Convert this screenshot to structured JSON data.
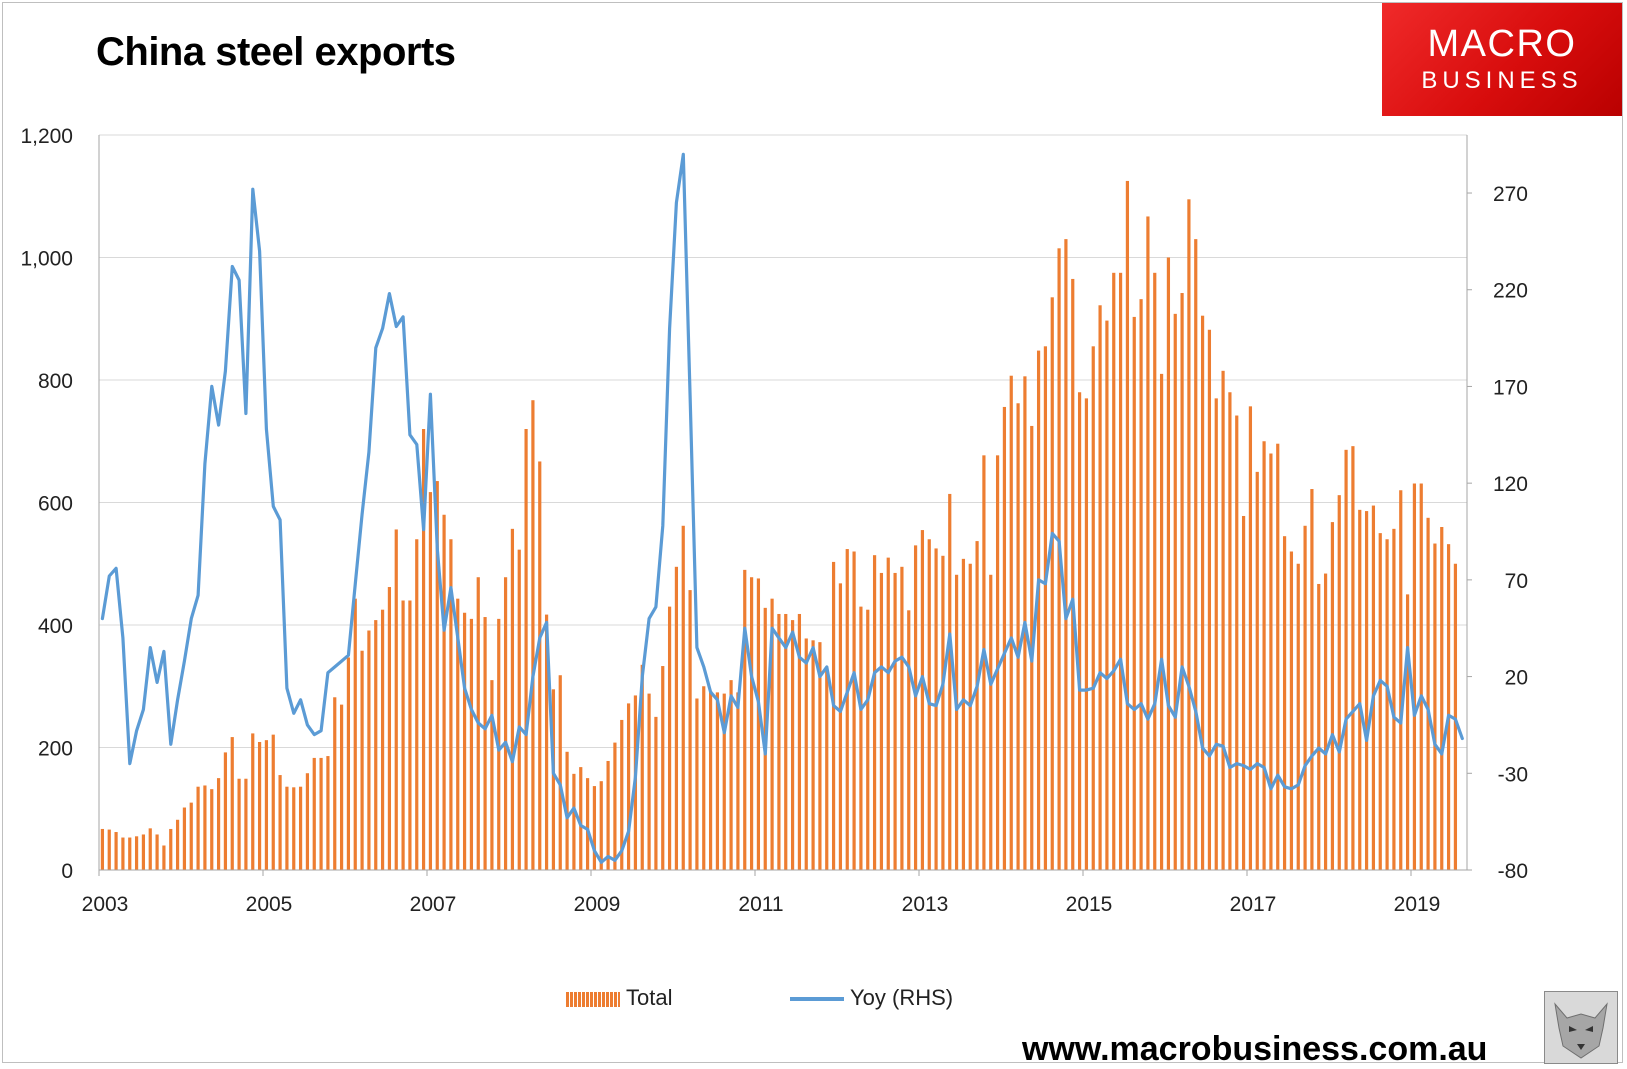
{
  "header": {
    "title": "China steel exports"
  },
  "logo": {
    "line1": "MACRO",
    "line2": "BUSINESS"
  },
  "footer": {
    "website": "www.macrobusiness.com.au"
  },
  "colors": {
    "bar": "#ed7d31",
    "line": "#5b9bd5",
    "grid": "#d9d9d9",
    "logo": "#e01b1b"
  },
  "chart_data": {
    "type": "bar+line",
    "title": "China steel exports",
    "x_ticks": [
      "2003",
      "2005",
      "2007",
      "2009",
      "2011",
      "2013",
      "2015",
      "2017",
      "2019"
    ],
    "y_left": {
      "min": 0,
      "max": 1200,
      "ticks": [
        "0",
        "200",
        "400",
        "600",
        "800",
        "1,000",
        "1,200"
      ]
    },
    "y_right": {
      "min": -80,
      "max": 300,
      "ticks": [
        "-80",
        "-30",
        "20",
        "70",
        "120",
        "170",
        "220",
        "270"
      ]
    },
    "legend": {
      "bar": "Total",
      "line": "Yoy (RHS)"
    },
    "series": [
      {
        "name": "Total",
        "axis": "left",
        "type": "bar",
        "values": [
          67,
          66,
          62,
          53,
          53,
          55,
          58,
          68,
          58,
          40,
          67,
          82,
          102,
          110,
          136,
          138,
          132,
          150,
          192,
          217,
          149,
          149,
          223,
          209,
          212,
          221,
          155,
          136,
          135,
          136,
          158,
          183,
          183,
          186,
          282,
          270,
          347,
          443,
          358,
          391,
          408,
          425,
          462,
          556,
          440,
          440,
          540,
          720,
          617,
          635,
          580,
          540,
          443,
          420,
          410,
          478,
          413,
          310,
          410,
          478,
          557,
          523,
          720,
          767,
          667,
          417,
          295,
          318,
          193,
          157,
          168,
          150,
          137,
          145,
          178,
          208,
          245,
          272,
          285,
          335,
          288,
          250,
          333,
          430,
          495,
          562,
          457,
          280,
          300,
          292,
          290,
          288,
          310,
          290,
          490,
          478,
          476,
          428,
          443,
          418,
          418,
          408,
          418,
          378,
          375,
          372,
          332,
          503,
          468,
          524,
          520,
          430,
          425,
          514,
          485,
          510,
          485,
          495,
          424,
          530,
          555,
          540,
          525,
          513,
          614,
          482,
          508,
          500,
          537,
          677,
          482,
          677,
          756,
          807,
          762,
          806,
          725,
          848,
          855,
          935,
          1015,
          1030,
          965,
          780,
          770,
          855,
          922,
          897,
          975,
          975,
          1125,
          903,
          932,
          1067,
          975,
          810,
          1000,
          908,
          942,
          1095,
          1030,
          905,
          882,
          770,
          815,
          780,
          742,
          578,
          757,
          650,
          700,
          680,
          696,
          545,
          520,
          500,
          562,
          622,
          467,
          484,
          568,
          612,
          686,
          692,
          588,
          586,
          595,
          550,
          540,
          557,
          620,
          450,
          631,
          631,
          575,
          533,
          560,
          532,
          500
        ],
        "value_note": "monthly exports in 10,000 tonnes, Jan 2003 to May 2019 (approx)"
      },
      {
        "name": "Yoy (RHS)",
        "axis": "right",
        "type": "line",
        "values": [
          50,
          72,
          76,
          40,
          -25,
          -8,
          3,
          35,
          17,
          33,
          -15,
          8,
          28,
          50,
          62,
          130,
          170,
          150,
          178,
          232,
          225,
          156,
          272,
          240,
          148,
          108,
          101,
          14,
          1,
          8,
          -5,
          -10,
          -8,
          22,
          25,
          28,
          31,
          68,
          104,
          136,
          190,
          200,
          218,
          201,
          206,
          145,
          140,
          96,
          166,
          86,
          44,
          66,
          40,
          14,
          3,
          -4,
          -7,
          0,
          -18,
          -14,
          -24,
          -6,
          -10,
          20,
          40,
          48,
          -30,
          -36,
          -53,
          -48,
          -57,
          -59,
          -70,
          -76,
          -73,
          -75,
          -70,
          -60,
          -32,
          20,
          50,
          56,
          98,
          200,
          265,
          290,
          165,
          35,
          25,
          12,
          8,
          -9,
          10,
          4,
          45,
          20,
          7,
          -20,
          45,
          40,
          35,
          43,
          30,
          27,
          35,
          20,
          25,
          5,
          2,
          12,
          22,
          3,
          8,
          22,
          25,
          22,
          28,
          30,
          25,
          10,
          20,
          6,
          5,
          16,
          42,
          3,
          8,
          5,
          15,
          34,
          16,
          24,
          32,
          40,
          30,
          48,
          28,
          70,
          68,
          94,
          90,
          50,
          60,
          13,
          13,
          14,
          22,
          19,
          23,
          29,
          6,
          3,
          6,
          -2,
          6,
          29,
          5,
          -1,
          25,
          15,
          2,
          -17,
          -21,
          -15,
          -16,
          -27,
          -25,
          -26,
          -28,
          -25,
          -27,
          -38,
          -31,
          -37,
          -38,
          -36,
          -26,
          -21,
          -17,
          -20,
          -10,
          -19,
          -2,
          2,
          6,
          -13,
          10,
          18,
          15,
          -1,
          -4,
          35,
          0,
          10,
          3,
          -15,
          -20,
          0,
          -2,
          -12
        ],
        "value_note": "year-on-year change, percent (approx)"
      }
    ]
  }
}
